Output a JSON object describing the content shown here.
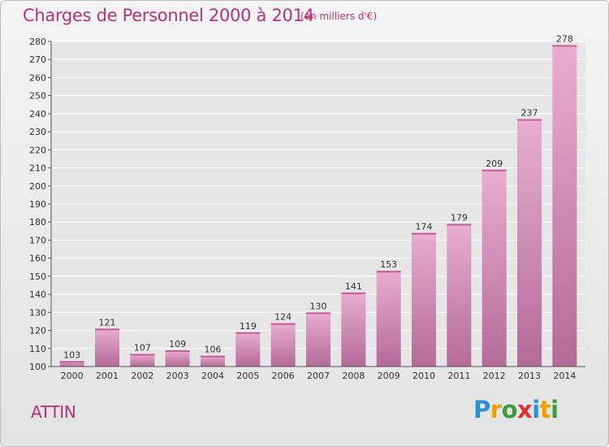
{
  "title": "Charges de Personnel 2000 à 2014",
  "subtitle": "(en milliers d'€)",
  "commune": "ATTIN",
  "logo": {
    "text": "Proxiti",
    "letters": [
      {
        "ch": "P",
        "color": "#2f8fd0"
      },
      {
        "ch": "r",
        "color": "#f0a000"
      },
      {
        "ch": "o",
        "color": "#3c9e3a"
      },
      {
        "ch": "x",
        "color": "#e03030"
      },
      {
        "ch": "i",
        "color": "#2f8fd0"
      },
      {
        "ch": "t",
        "color": "#f0a000"
      },
      {
        "ch": "i",
        "color": "#3c9e3a"
      }
    ]
  },
  "colors": {
    "bar_top": "#e8aed0",
    "bar_bottom": "#b46a98",
    "text_accent": "#b8327a"
  },
  "chart_data": {
    "type": "bar",
    "categories": [
      "2000",
      "2001",
      "2002",
      "2003",
      "2004",
      "2005",
      "2006",
      "2007",
      "2008",
      "2009",
      "2010",
      "2011",
      "2012",
      "2013",
      "2014"
    ],
    "values": [
      103,
      121,
      107,
      109,
      106,
      119,
      124,
      130,
      141,
      153,
      174,
      179,
      209,
      237,
      278
    ],
    "ylim": [
      100,
      280
    ],
    "yticks": [
      100,
      110,
      120,
      130,
      140,
      150,
      160,
      170,
      180,
      190,
      200,
      210,
      220,
      230,
      240,
      250,
      260,
      270,
      280
    ],
    "grid": true,
    "title": "Charges de Personnel 2000 à 2014",
    "xlabel": "",
    "ylabel": ""
  }
}
